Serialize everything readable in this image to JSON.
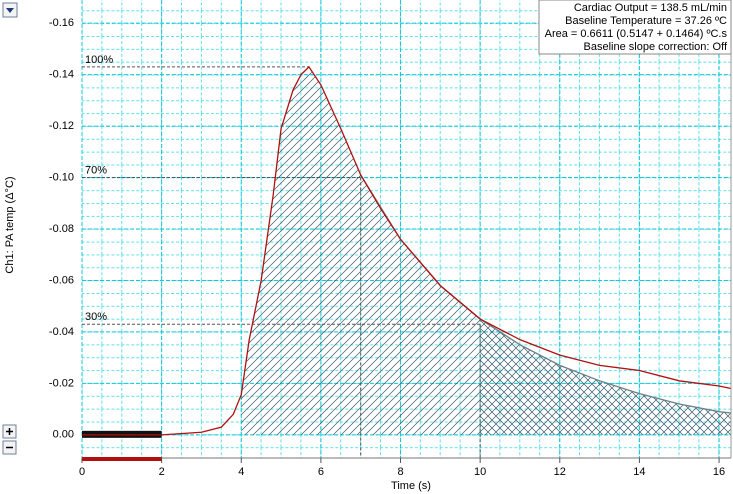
{
  "chart_data": {
    "type": "line",
    "xlabel": "Time (s)",
    "ylabel": "Ch1:  PA temp (Δ°C)",
    "xlim": [
      0,
      16.3
    ],
    "xticks": [
      0,
      2,
      4,
      6,
      8,
      10,
      12,
      14,
      16
    ],
    "ylim": [
      0.009,
      -0.169
    ],
    "yticks": [
      {
        "value": 0,
        "label": "0.00"
      },
      -0.02,
      -0.04,
      -0.06,
      -0.08,
      {
        "value": -0.1,
        "label": "-0.10"
      },
      -0.12,
      -0.14,
      -0.16
    ],
    "grid": true,
    "series": [
      {
        "color": "#b01010",
        "x": [
          0,
          1,
          2,
          3,
          3.5,
          3.8,
          4,
          4.2,
          4.5,
          4.8,
          5,
          5.3,
          5.5,
          5.7,
          6,
          6.5,
          7,
          7.5,
          8,
          9,
          10,
          11,
          12,
          13,
          14,
          15,
          16,
          16.3
        ],
        "values": [
          0,
          0,
          0,
          -0.001,
          -0.003,
          -0.008,
          -0.0156,
          -0.037,
          -0.06,
          -0.093,
          -0.119,
          -0.134,
          -0.14,
          -0.143,
          -0.136,
          -0.119,
          -0.101,
          -0.088,
          -0.076,
          -0.058,
          -0.045,
          -0.037,
          -0.031,
          -0.027,
          -0.025,
          -0.021,
          -0.019,
          -0.018
        ]
      },
      {
        "color": "#6a7f86",
        "x": [
          7,
          8,
          9,
          10,
          11,
          12,
          13,
          14,
          15,
          16,
          16.3
        ],
        "values": [
          -0.101,
          -0.076,
          -0.058,
          -0.045,
          -0.035,
          -0.027,
          -0.021,
          -0.016,
          -0.012,
          -0.009,
          -0.0085
        ]
      }
    ],
    "baseline_range": [
      0,
      2
    ],
    "levels": [
      {
        "label": "100%",
        "value": -0.143,
        "t": 5.7
      },
      {
        "label": "70%",
        "value": -0.1,
        "t": 7
      },
      {
        "label": "30%",
        "value": -0.043,
        "t": 10
      }
    ],
    "info": [
      "Cardiac Output = 138.5 mL/min",
      "Baseline Temperature = 37.26 ºC",
      "Area = 0.6611 (0.5147 + 0.1464) ºC.s",
      "Baseline slope correction: Off"
    ]
  }
}
